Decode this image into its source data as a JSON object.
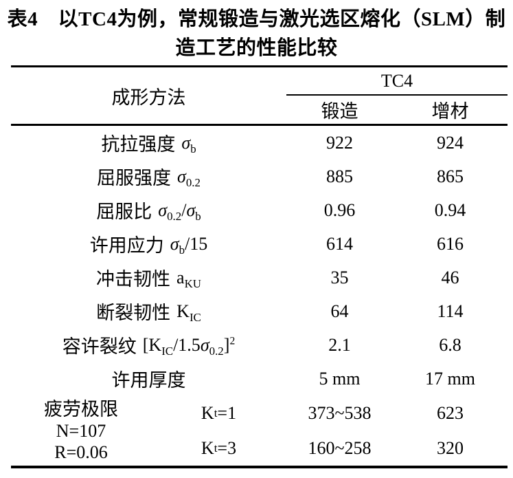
{
  "document": {
    "title_line1": "表4　以TC4为例，常规锻造与激光选区熔化（SLM）制",
    "title_line2": "造工艺的性能比较"
  },
  "header": {
    "method_label": "成形方法",
    "group_label": "TC4",
    "col_forging": "锻造",
    "col_additive": "增材"
  },
  "rows": [
    {
      "label": "抗拉强度",
      "formula": [
        {
          "t": "σ",
          "i": true
        },
        {
          "t": "b",
          "sub": true
        }
      ],
      "forging": "922",
      "additive": "924"
    },
    {
      "label": "屈服强度",
      "formula": [
        {
          "t": "σ",
          "i": true
        },
        {
          "t": "0.2",
          "sub": true
        }
      ],
      "forging": "885",
      "additive": "865"
    },
    {
      "label": "屈服比",
      "formula": [
        {
          "t": "σ",
          "i": true
        },
        {
          "t": "0.2",
          "sub": true
        },
        {
          "t": "/"
        },
        {
          "t": "σ",
          "i": true
        },
        {
          "t": "b",
          "sub": true
        }
      ],
      "forging": "0.96",
      "additive": "0.94"
    },
    {
      "label": "许用应力",
      "formula": [
        {
          "t": "σ",
          "i": true
        },
        {
          "t": "b",
          "sub": true
        },
        {
          "t": "/15"
        }
      ],
      "forging": "614",
      "additive": "616"
    },
    {
      "label": "冲击韧性",
      "formula": [
        {
          "t": "a"
        },
        {
          "t": "KU",
          "sub": true
        }
      ],
      "forging": "35",
      "additive": "46"
    },
    {
      "label": "断裂韧性",
      "formula": [
        {
          "t": "K"
        },
        {
          "t": "IC",
          "sub": true
        }
      ],
      "forging": "64",
      "additive": "114"
    },
    {
      "label": "容许裂纹",
      "formula": [
        {
          "t": "[K"
        },
        {
          "t": "IC",
          "sub": true
        },
        {
          "t": "/1.5"
        },
        {
          "t": "σ",
          "i": true
        },
        {
          "t": "0.2",
          "sub": true
        },
        {
          "t": "]"
        },
        {
          "t": "2",
          "sup": true
        }
      ],
      "forging": "2.1",
      "additive": "6.8"
    },
    {
      "label": "许用厚度",
      "formula": [],
      "forging": "5 mm",
      "additive": "17 mm"
    }
  ],
  "fatigue": {
    "label_line1": "疲劳极限",
    "label_line2": "N=107",
    "label_line3": "R=0.06",
    "cases": [
      {
        "kt": [
          {
            "t": "K"
          },
          {
            "t": "t",
            "sub": true
          },
          {
            "t": "=1"
          }
        ],
        "forging": "373~538",
        "additive": "623"
      },
      {
        "kt": [
          {
            "t": "K"
          },
          {
            "t": "t",
            "sub": true
          },
          {
            "t": "=3"
          }
        ],
        "forging": "160~258",
        "additive": "320"
      }
    ]
  },
  "colors": {
    "text": "#000000",
    "background": "#ffffff",
    "rule": "#000000"
  }
}
